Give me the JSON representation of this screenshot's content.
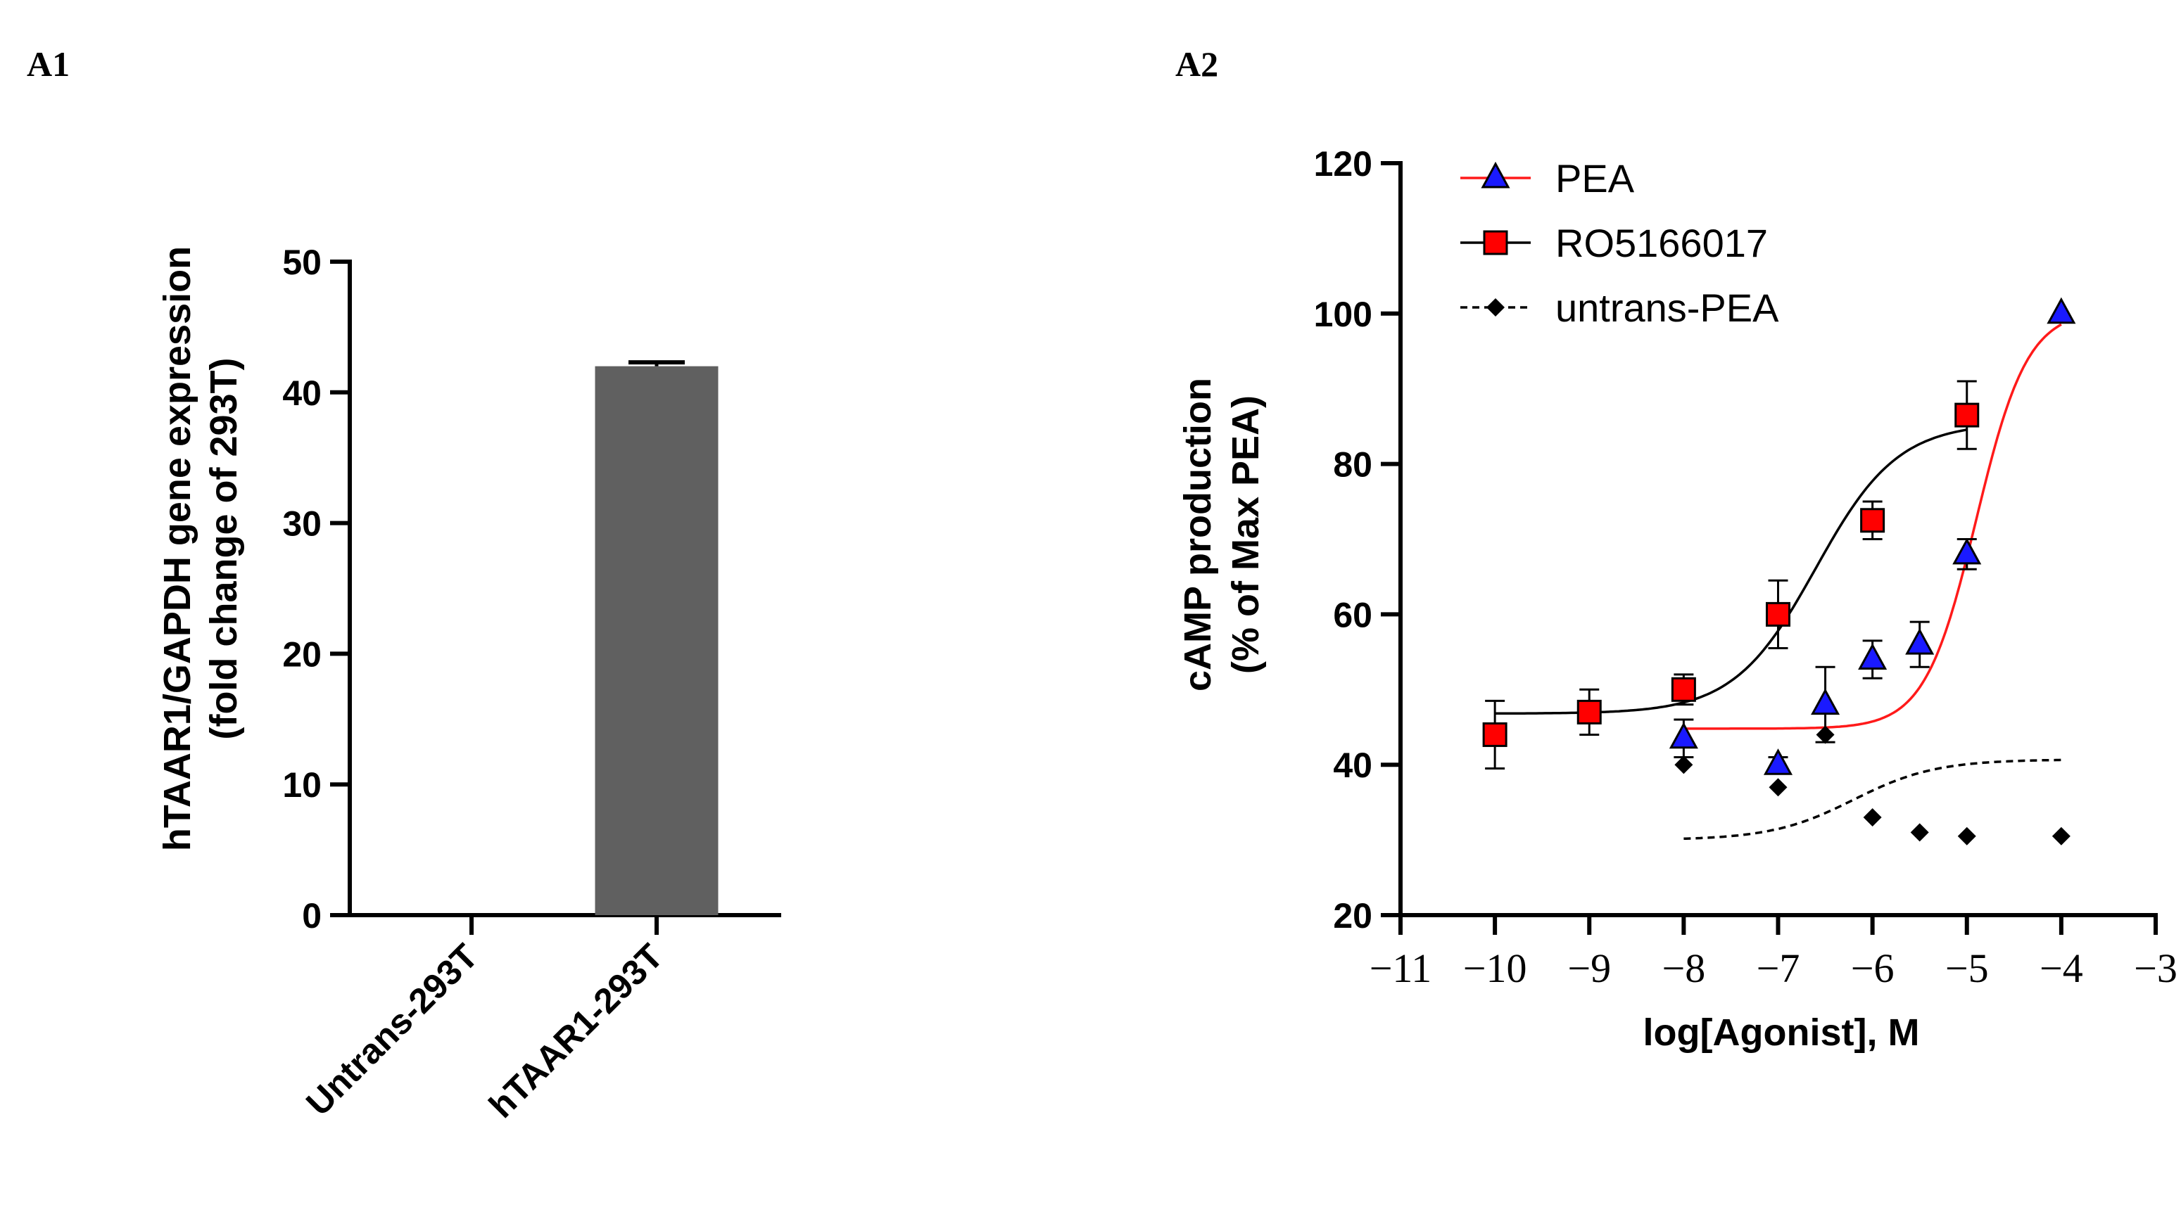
{
  "chart_data": [
    {
      "panel": "A1",
      "type": "bar",
      "categories": [
        "Untrans-293T",
        "hTAAR1-293T"
      ],
      "values": [
        0,
        42
      ],
      "errors": [
        0,
        0.3
      ],
      "ylabel_line1": "hTAAR1/GAPDH gene expression",
      "ylabel_line2": "(fold change of 293T)",
      "ylim": [
        0,
        50
      ],
      "yticks": [
        "0",
        "10",
        "20",
        "30",
        "40",
        "50"
      ],
      "bar_color": "#606060"
    },
    {
      "panel": "A2",
      "type": "line",
      "xlabel": "log[Agonist], M",
      "ylabel_line1": "cAMP production",
      "ylabel_line2": "(% of Max PEA)",
      "xlim": [
        -11,
        -3
      ],
      "ylim": [
        20,
        120
      ],
      "xticks": [
        "−11",
        "−10",
        "−9",
        "−8",
        "−7",
        "−6",
        "−5",
        "−4",
        "−3"
      ],
      "yticks": [
        "20",
        "40",
        "60",
        "80",
        "100",
        "120"
      ],
      "series": [
        {
          "name": "PEA",
          "marker": "triangle",
          "marker_color": "#1a1aff",
          "line_color": "#ff1a1a",
          "line_style": "solid",
          "x": [
            -8,
            -7,
            -6.5,
            -6,
            -5.5,
            -5,
            -4
          ],
          "y": [
            43.5,
            40,
            48,
            54,
            56,
            68,
            100
          ],
          "err": [
            2.5,
            1,
            5,
            2.5,
            3,
            2,
            0
          ],
          "fit": {
            "bottom": 44.8,
            "top": 100.5,
            "logec50": -4.9,
            "hill": 1.6,
            "x_range": [
              -8,
              -4
            ]
          }
        },
        {
          "name": "RO5166017",
          "marker": "square",
          "marker_color": "#ff0000",
          "line_color": "#000000",
          "line_style": "solid",
          "x": [
            -10,
            -9,
            -8,
            -7,
            -6,
            -5
          ],
          "y": [
            44,
            47,
            50,
            60,
            72.5,
            86.5
          ],
          "err": [
            4.5,
            3,
            2,
            4.5,
            2.5,
            4.5
          ],
          "fit": {
            "bottom": 46.8,
            "top": 85.5,
            "logec50": -6.6,
            "hill": 1.0,
            "x_range": [
              -10,
              -5
            ]
          }
        },
        {
          "name": "untrans-PEA",
          "marker": "diamond",
          "marker_color": "#000000",
          "line_color": "#000000",
          "line_style": "dashed",
          "x": [
            -8,
            -7,
            -6.5,
            -6,
            -5.5,
            -5,
            -4
          ],
          "y": [
            40,
            37,
            44,
            33,
            31,
            30.5,
            30.5
          ],
          "err": [
            0,
            0,
            0,
            0,
            0,
            0,
            0
          ],
          "fit": {
            "bottom": 30,
            "top": 40.7,
            "logec50": -6.2,
            "hill": 1.0,
            "x_range": [
              -8,
              -4
            ]
          }
        }
      ]
    }
  ],
  "panel_labels": {
    "a1": "A1",
    "a2": "A2"
  }
}
